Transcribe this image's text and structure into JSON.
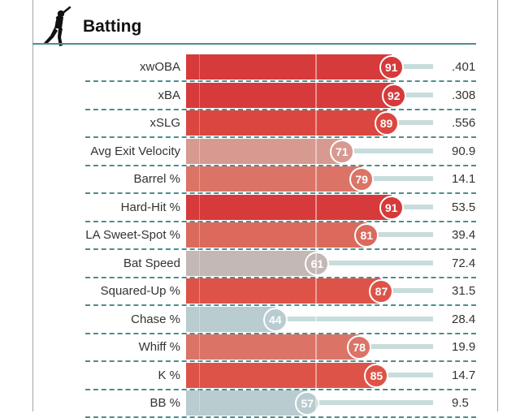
{
  "section": {
    "title": "Batting",
    "icon": "batter-icon"
  },
  "colors": {
    "dark_red": "#d63a3a",
    "red": "#de5348",
    "salmon": "#db7466",
    "pink": "#d79a90",
    "gray": "#c3b8b5",
    "light_blue": "#b9ccd0",
    "teal": "#4d8e8e"
  },
  "stats": [
    {
      "label": "xwOBA",
      "percentile": "91",
      "value": ".401",
      "pct": 91,
      "color": "#d63a3a"
    },
    {
      "label": "xBA",
      "percentile": "92",
      "value": ".308",
      "pct": 92,
      "color": "#d63a3a"
    },
    {
      "label": "xSLG",
      "percentile": "89",
      "value": ".556",
      "pct": 89,
      "color": "#dc4640"
    },
    {
      "label": "Avg Exit Velocity",
      "percentile": "71",
      "value": "90.9",
      "pct": 71,
      "color": "#d79a90"
    },
    {
      "label": "Barrel %",
      "percentile": "79",
      "value": "14.1",
      "pct": 79,
      "color": "#db7466"
    },
    {
      "label": "Hard-Hit %",
      "percentile": "91",
      "value": "53.5",
      "pct": 91,
      "color": "#d63a3a"
    },
    {
      "label": "LA Sweet-Spot %",
      "percentile": "81",
      "value": "39.4",
      "pct": 81,
      "color": "#db6a5c"
    },
    {
      "label": "Bat Speed",
      "percentile": "61",
      "value": "72.4",
      "pct": 61,
      "color": "#c3b8b5"
    },
    {
      "label": "Squared-Up %",
      "percentile": "87",
      "value": "31.5",
      "pct": 87,
      "color": "#de5348"
    },
    {
      "label": "Chase %",
      "percentile": "44",
      "value": "28.4",
      "pct": 44,
      "color": "#b9ccd0"
    },
    {
      "label": "Whiff %",
      "percentile": "78",
      "value": "19.9",
      "pct": 78,
      "color": "#db7466"
    },
    {
      "label": "K %",
      "percentile": "85",
      "value": "14.7",
      "pct": 85,
      "color": "#de5348"
    },
    {
      "label": "BB %",
      "percentile": "57",
      "value": "9.5",
      "pct": 57,
      "color": "#b9ccd0"
    }
  ]
}
